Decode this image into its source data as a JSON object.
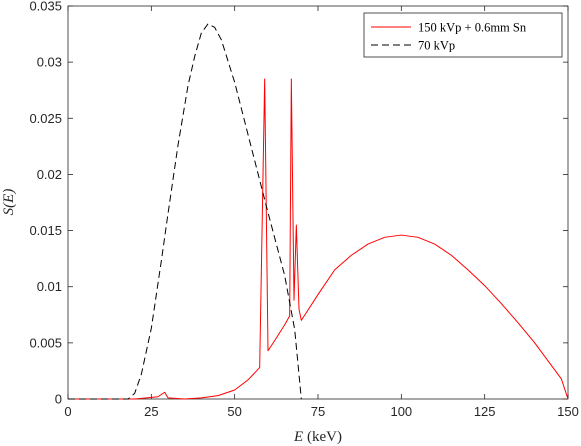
{
  "chart_data": {
    "type": "line",
    "xlabel_italic": "E",
    "xlabel_rest": " (keV)",
    "ylabel": "S(E)",
    "xlim": [
      0,
      150
    ],
    "ylim": [
      0,
      0.035
    ],
    "xticks": [
      0,
      25,
      50,
      75,
      100,
      125,
      150
    ],
    "yticks": [
      0,
      0.005,
      0.01,
      0.015,
      0.02,
      0.025,
      0.03,
      0.035
    ],
    "ytick_labels": [
      "0",
      "0.005",
      "0.01",
      "0.015",
      "0.02",
      "0.025",
      "0.03",
      "0.035"
    ],
    "grid": false,
    "legend_position": "top-right",
    "series": [
      {
        "name": "150 kVp + 0.6mm Sn",
        "color": "#ff0000",
        "style": "solid",
        "points": [
          [
            0,
            0
          ],
          [
            20,
            0
          ],
          [
            27,
            0.0002
          ],
          [
            29,
            0.0006
          ],
          [
            30,
            0.0001
          ],
          [
            35,
            0
          ],
          [
            40,
            0.0001
          ],
          [
            45,
            0.0003
          ],
          [
            50,
            0.0008
          ],
          [
            54,
            0.0017
          ],
          [
            57.5,
            0.0028
          ],
          [
            59,
            0.0285
          ],
          [
            60,
            0.0043
          ],
          [
            62,
            0.0052
          ],
          [
            65,
            0.0066
          ],
          [
            66.5,
            0.0074
          ],
          [
            67,
            0.0285
          ],
          [
            67.8,
            0.0088
          ],
          [
            68.5,
            0.0155
          ],
          [
            69.3,
            0.008
          ],
          [
            70,
            0.007
          ],
          [
            75,
            0.0093
          ],
          [
            80,
            0.0115
          ],
          [
            85,
            0.0128
          ],
          [
            90,
            0.0138
          ],
          [
            95,
            0.0144
          ],
          [
            100,
            0.0146
          ],
          [
            105,
            0.0144
          ],
          [
            110,
            0.0138
          ],
          [
            115,
            0.0128
          ],
          [
            120,
            0.0115
          ],
          [
            125,
            0.0101
          ],
          [
            130,
            0.0085
          ],
          [
            135,
            0.0068
          ],
          [
            140,
            0.005
          ],
          [
            145,
            0.003
          ],
          [
            148,
            0.0018
          ],
          [
            150,
            0
          ]
        ]
      },
      {
        "name": "70 kVp",
        "color": "#000000",
        "style": "dashed",
        "points": [
          [
            0,
            0
          ],
          [
            18,
            0
          ],
          [
            20,
            0.0005
          ],
          [
            22,
            0.0022
          ],
          [
            25,
            0.0063
          ],
          [
            28,
            0.0123
          ],
          [
            30,
            0.0165
          ],
          [
            33,
            0.0226
          ],
          [
            36,
            0.0279
          ],
          [
            38,
            0.0305
          ],
          [
            40,
            0.0326
          ],
          [
            42,
            0.0334
          ],
          [
            44,
            0.0331
          ],
          [
            46,
            0.032
          ],
          [
            50,
            0.0282
          ],
          [
            55,
            0.0224
          ],
          [
            60,
            0.0166
          ],
          [
            65,
            0.011
          ],
          [
            68,
            0.0062
          ],
          [
            70,
            0
          ]
        ]
      }
    ]
  }
}
